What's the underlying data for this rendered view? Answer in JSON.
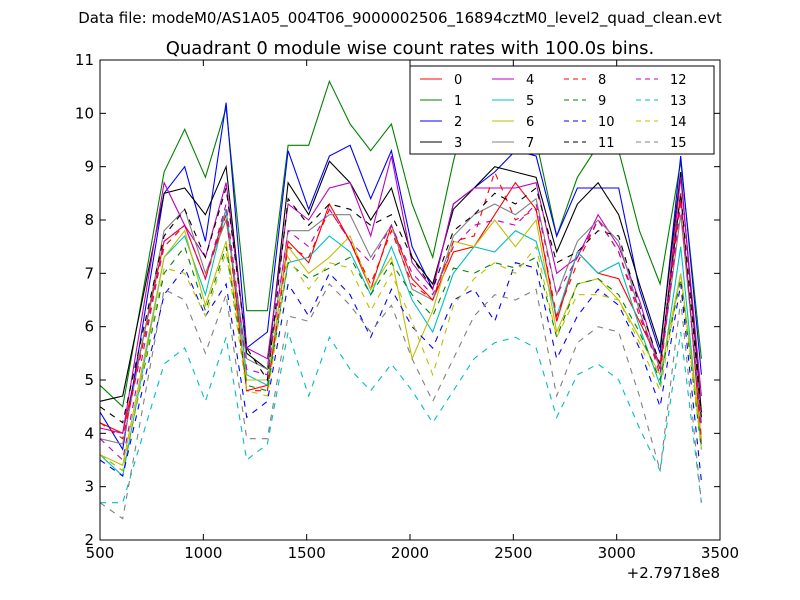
{
  "chart_data": {
    "type": "line",
    "suptitle": "Data file: modeM0/AS1A05_004T06_9000002506_16894cztM0_level2_quad_clean.evt",
    "title": "Quadrant 0 module wise count rates with 100.0s bins.",
    "xlabel": "",
    "ylabel": "",
    "x_offset_label": "+2.79718e8",
    "xlim": [
      500,
      3500
    ],
    "ylim": [
      2,
      11
    ],
    "xticks": [
      500,
      1000,
      1500,
      2000,
      2500,
      3000,
      3500
    ],
    "yticks": [
      2,
      3,
      4,
      5,
      6,
      7,
      8,
      9,
      10,
      11
    ],
    "grid": false,
    "legend_position": "top-right",
    "x": [
      500,
      610,
      810,
      910,
      1010,
      1110,
      1210,
      1310,
      1410,
      1510,
      1610,
      1710,
      1810,
      1910,
      2010,
      2110,
      2210,
      2310,
      2410,
      2510,
      2610,
      2710,
      2810,
      2910,
      3010,
      3110,
      3210,
      3310,
      3410
    ],
    "series": [
      {
        "name": "0",
        "color": "#ff0000",
        "dash": "solid",
        "values": [
          4.2,
          4.0,
          7.6,
          7.9,
          6.9,
          8.2,
          4.8,
          4.9,
          7.6,
          7.2,
          8.3,
          7.6,
          6.7,
          7.9,
          6.9,
          6.5,
          7.4,
          7.5,
          8.1,
          8.7,
          8.2,
          6.1,
          7.4,
          7.0,
          6.9,
          6.1,
          5.3,
          8.5,
          3.8
        ]
      },
      {
        "name": "1",
        "color": "#008000",
        "dash": "solid",
        "values": [
          4.9,
          4.5,
          8.9,
          9.7,
          8.8,
          10.1,
          6.3,
          6.3,
          9.4,
          9.4,
          10.6,
          9.8,
          9.3,
          9.8,
          8.3,
          7.3,
          9.1,
          10.6,
          10.2,
          10.1,
          9.5,
          7.7,
          8.8,
          9.4,
          9.3,
          7.8,
          6.8,
          9.1,
          5.4
        ]
      },
      {
        "name": "2",
        "color": "#0000ff",
        "dash": "solid",
        "values": [
          4.4,
          3.7,
          8.5,
          9.0,
          7.6,
          10.2,
          5.6,
          5.9,
          9.3,
          8.2,
          9.2,
          9.4,
          8.4,
          9.3,
          7.5,
          6.7,
          8.3,
          8.6,
          8.9,
          9.3,
          9.2,
          7.7,
          8.6,
          8.6,
          8.6,
          6.7,
          5.5,
          9.2,
          5.1
        ]
      },
      {
        "name": "3",
        "color": "#000000",
        "dash": "solid",
        "values": [
          4.6,
          4.7,
          8.5,
          8.6,
          8.1,
          9.0,
          5.5,
          5.2,
          8.7,
          8.1,
          9.1,
          8.7,
          8.0,
          8.6,
          7.3,
          6.8,
          8.2,
          8.6,
          9.0,
          8.9,
          8.8,
          7.4,
          8.3,
          8.7,
          8.1,
          6.8,
          5.6,
          8.9,
          4.4
        ]
      },
      {
        "name": "4",
        "color": "#bf00bf",
        "dash": "solid",
        "values": [
          4.1,
          4.0,
          8.7,
          7.9,
          7.3,
          8.7,
          5.6,
          5.4,
          8.3,
          8.0,
          8.6,
          8.7,
          7.7,
          9.2,
          7.2,
          6.7,
          8.3,
          8.6,
          8.6,
          8.6,
          8.7,
          7.0,
          7.3,
          8.1,
          7.5,
          6.5,
          5.2,
          8.8,
          4.7
        ]
      },
      {
        "name": "5",
        "color": "#00bfbf",
        "dash": "solid",
        "values": [
          3.6,
          3.2,
          7.3,
          7.7,
          6.6,
          8.2,
          5.1,
          4.9,
          7.2,
          7.3,
          7.7,
          7.4,
          6.6,
          7.5,
          6.5,
          5.9,
          7.0,
          7.5,
          7.4,
          7.8,
          7.6,
          6.2,
          7.4,
          7.0,
          7.2,
          6.0,
          4.9,
          7.5,
          3.7
        ]
      },
      {
        "name": "6",
        "color": "#bfbf00",
        "dash": "solid",
        "values": [
          3.6,
          3.4,
          7.3,
          7.8,
          6.4,
          7.6,
          5.0,
          5.0,
          7.5,
          7.0,
          7.3,
          7.7,
          6.7,
          7.3,
          5.4,
          6.3,
          7.6,
          7.5,
          8.0,
          7.5,
          8.0,
          5.9,
          6.8,
          6.9,
          6.5,
          5.8,
          5.1,
          7.0,
          3.9
        ]
      },
      {
        "name": "7",
        "color": "#808080",
        "dash": "solid",
        "values": [
          3.9,
          3.8,
          7.8,
          8.2,
          7.0,
          8.0,
          5.4,
          5.2,
          7.8,
          7.8,
          8.1,
          8.1,
          7.3,
          7.9,
          6.7,
          6.5,
          7.7,
          8.1,
          8.3,
          8.1,
          8.4,
          6.6,
          7.6,
          8.0,
          7.6,
          6.3,
          5.2,
          8.1,
          4.2
        ]
      },
      {
        "name": "8",
        "color": "#ff0000",
        "dash": "dashed",
        "values": [
          4.2,
          3.9,
          7.5,
          7.9,
          6.9,
          8.1,
          4.8,
          4.8,
          7.5,
          7.3,
          8.2,
          7.6,
          6.8,
          7.8,
          6.8,
          6.5,
          7.6,
          7.7,
          8.9,
          8.0,
          8.2,
          6.2,
          7.2,
          8.0,
          7.4,
          6.2,
          5.2,
          8.4,
          3.9
        ]
      },
      {
        "name": "9",
        "color": "#008000",
        "dash": "dashed",
        "values": [
          3.6,
          3.3,
          7.0,
          7.5,
          6.3,
          7.5,
          4.9,
          4.8,
          7.2,
          6.9,
          7.1,
          7.3,
          6.6,
          7.2,
          6.6,
          6.2,
          7.1,
          7.0,
          7.2,
          7.1,
          7.3,
          5.8,
          6.8,
          6.9,
          6.6,
          5.9,
          5.0,
          6.9,
          3.7
        ]
      },
      {
        "name": "10",
        "color": "#0000ff",
        "dash": "dashed",
        "values": [
          3.5,
          3.2,
          6.6,
          7.1,
          6.2,
          6.8,
          4.3,
          4.6,
          6.8,
          6.2,
          7.0,
          6.6,
          5.8,
          6.7,
          6.0,
          5.6,
          6.5,
          6.7,
          6.1,
          7.2,
          7.1,
          5.4,
          6.2,
          6.7,
          6.4,
          5.6,
          4.5,
          6.8,
          3.1
        ]
      },
      {
        "name": "11",
        "color": "#000000",
        "dash": "dashed",
        "values": [
          4.5,
          4.2,
          7.7,
          8.2,
          7.3,
          8.6,
          5.6,
          5.0,
          8.4,
          7.9,
          8.3,
          8.2,
          7.9,
          8.1,
          7.3,
          6.7,
          7.8,
          8.1,
          8.5,
          8.3,
          8.6,
          7.2,
          7.4,
          7.8,
          7.7,
          6.4,
          5.3,
          8.5,
          4.3
        ]
      },
      {
        "name": "12",
        "color": "#bf00bf",
        "dash": "dashed",
        "values": [
          3.9,
          3.5,
          7.6,
          7.9,
          6.9,
          8.3,
          5.2,
          5.1,
          7.8,
          7.5,
          8.2,
          7.6,
          7.2,
          7.9,
          7.0,
          6.6,
          7.5,
          7.9,
          8.0,
          7.9,
          8.3,
          6.6,
          7.3,
          8.0,
          7.4,
          6.3,
          5.1,
          8.3,
          4.1
        ]
      },
      {
        "name": "13",
        "color": "#00bfbf",
        "dash": "dashed",
        "values": [
          2.7,
          2.7,
          5.3,
          5.6,
          4.6,
          5.8,
          3.5,
          3.8,
          5.9,
          4.7,
          5.8,
          5.2,
          4.8,
          5.3,
          4.8,
          4.2,
          4.8,
          5.4,
          5.7,
          5.8,
          5.6,
          4.3,
          5.1,
          5.3,
          5.0,
          4.1,
          3.3,
          5.9,
          2.7
        ]
      },
      {
        "name": "14",
        "color": "#bfbf00",
        "dash": "dashed",
        "values": [
          3.6,
          3.3,
          7.1,
          7.0,
          6.2,
          7.4,
          4.8,
          4.7,
          7.3,
          6.7,
          7.2,
          7.1,
          6.3,
          7.0,
          6.1,
          5.1,
          6.4,
          6.9,
          7.2,
          7.0,
          7.5,
          5.8,
          6.6,
          6.6,
          6.5,
          5.7,
          4.8,
          7.0,
          3.7
        ]
      },
      {
        "name": "15",
        "color": "#808080",
        "dash": "dashed",
        "values": [
          2.7,
          2.4,
          6.7,
          6.5,
          5.5,
          6.6,
          3.9,
          3.9,
          6.2,
          6.1,
          6.8,
          6.4,
          5.9,
          6.4,
          5.4,
          4.6,
          5.4,
          6.2,
          6.6,
          6.5,
          6.7,
          4.7,
          5.7,
          6.0,
          5.9,
          4.7,
          3.3,
          6.5,
          2.7
        ]
      }
    ]
  }
}
